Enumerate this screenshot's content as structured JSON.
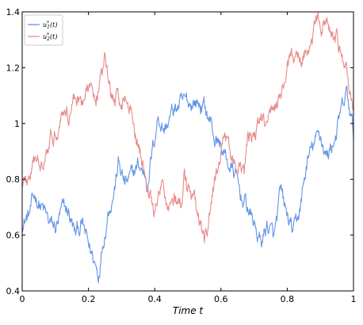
{
  "chart_data": {
    "type": "line",
    "xlabel": "Time t",
    "ylabel": "",
    "xlim": [
      0,
      1
    ],
    "ylim": [
      0.4,
      1.4
    ],
    "xticks": [
      0,
      0.2,
      0.4,
      0.6,
      0.8,
      1
    ],
    "xtick_labels": [
      "0",
      "0.2",
      "0.4",
      "0.6",
      "0.8",
      "1"
    ],
    "yticks": [
      0.4,
      0.6,
      0.8,
      1.0,
      1.2,
      1.4
    ],
    "ytick_labels": [
      "0.4",
      "0.6",
      "0.8",
      "1",
      "1.2",
      "1.4"
    ],
    "grid": false,
    "legend_position": "top-left",
    "series": [
      {
        "name": "u1*(t)",
        "legend_base": "u",
        "legend_sup": "*",
        "legend_sub": "1",
        "legend_tail": "(t)",
        "color": "#6495e6",
        "anchors": [
          [
            0.0,
            0.65
          ],
          [
            0.02,
            0.67
          ],
          [
            0.04,
            0.74
          ],
          [
            0.06,
            0.7
          ],
          [
            0.08,
            0.64
          ],
          [
            0.1,
            0.62
          ],
          [
            0.12,
            0.68
          ],
          [
            0.14,
            0.68
          ],
          [
            0.16,
            0.6
          ],
          [
            0.18,
            0.64
          ],
          [
            0.2,
            0.56
          ],
          [
            0.22,
            0.5
          ],
          [
            0.23,
            0.46
          ],
          [
            0.24,
            0.56
          ],
          [
            0.26,
            0.7
          ],
          [
            0.28,
            0.78
          ],
          [
            0.29,
            0.86
          ],
          [
            0.31,
            0.78
          ],
          [
            0.33,
            0.8
          ],
          [
            0.35,
            0.85
          ],
          [
            0.37,
            0.82
          ],
          [
            0.38,
            0.8
          ],
          [
            0.39,
            0.88
          ],
          [
            0.4,
            0.95
          ],
          [
            0.41,
            1.03
          ],
          [
            0.43,
            0.98
          ],
          [
            0.45,
            1.03
          ],
          [
            0.47,
            1.06
          ],
          [
            0.5,
            1.07
          ],
          [
            0.52,
            1.08
          ],
          [
            0.55,
            1.06
          ],
          [
            0.57,
            1.0
          ],
          [
            0.58,
            0.95
          ],
          [
            0.6,
            0.92
          ],
          [
            0.62,
            0.86
          ],
          [
            0.64,
            0.82
          ],
          [
            0.66,
            0.74
          ],
          [
            0.68,
            0.7
          ],
          [
            0.7,
            0.64
          ],
          [
            0.72,
            0.57
          ],
          [
            0.74,
            0.64
          ],
          [
            0.76,
            0.58
          ],
          [
            0.78,
            0.74
          ],
          [
            0.8,
            0.66
          ],
          [
            0.82,
            0.6
          ],
          [
            0.84,
            0.7
          ],
          [
            0.86,
            0.86
          ],
          [
            0.88,
            0.92
          ],
          [
            0.9,
            0.96
          ],
          [
            0.92,
            0.88
          ],
          [
            0.94,
            0.94
          ],
          [
            0.96,
            1.02
          ],
          [
            0.98,
            1.1
          ],
          [
            1.0,
            0.96
          ]
        ]
      },
      {
        "name": "u2*(t)",
        "legend_base": "u",
        "legend_sup": "*",
        "legend_sub": "2",
        "legend_tail": "(t)",
        "color": "#e88a8a",
        "anchors": [
          [
            0.0,
            0.8
          ],
          [
            0.02,
            0.79
          ],
          [
            0.04,
            0.86
          ],
          [
            0.06,
            0.88
          ],
          [
            0.08,
            0.95
          ],
          [
            0.1,
            0.98
          ],
          [
            0.12,
            1.05
          ],
          [
            0.14,
            1.04
          ],
          [
            0.16,
            1.1
          ],
          [
            0.18,
            1.08
          ],
          [
            0.2,
            1.12
          ],
          [
            0.22,
            1.1
          ],
          [
            0.24,
            1.17
          ],
          [
            0.25,
            1.22
          ],
          [
            0.27,
            1.1
          ],
          [
            0.29,
            1.08
          ],
          [
            0.31,
            1.1
          ],
          [
            0.33,
            1.04
          ],
          [
            0.35,
            0.94
          ],
          [
            0.37,
            0.82
          ],
          [
            0.39,
            0.72
          ],
          [
            0.4,
            0.67
          ],
          [
            0.42,
            0.77
          ],
          [
            0.44,
            0.72
          ],
          [
            0.46,
            0.74
          ],
          [
            0.48,
            0.7
          ],
          [
            0.49,
            0.8
          ],
          [
            0.5,
            0.76
          ],
          [
            0.52,
            0.7
          ],
          [
            0.54,
            0.62
          ],
          [
            0.55,
            0.55
          ],
          [
            0.56,
            0.62
          ],
          [
            0.58,
            0.78
          ],
          [
            0.6,
            0.9
          ],
          [
            0.62,
            0.95
          ],
          [
            0.63,
            0.9
          ],
          [
            0.65,
            0.82
          ],
          [
            0.67,
            0.82
          ],
          [
            0.68,
            0.92
          ],
          [
            0.7,
            0.96
          ],
          [
            0.72,
            1.0
          ],
          [
            0.74,
            0.98
          ],
          [
            0.76,
            1.08
          ],
          [
            0.78,
            1.1
          ],
          [
            0.8,
            1.2
          ],
          [
            0.82,
            1.22
          ],
          [
            0.84,
            1.24
          ],
          [
            0.86,
            1.28
          ],
          [
            0.88,
            1.33
          ],
          [
            0.9,
            1.36
          ],
          [
            0.92,
            1.34
          ],
          [
            0.94,
            1.3
          ],
          [
            0.96,
            1.26
          ],
          [
            0.98,
            1.18
          ],
          [
            1.0,
            1.04
          ]
        ]
      }
    ]
  }
}
